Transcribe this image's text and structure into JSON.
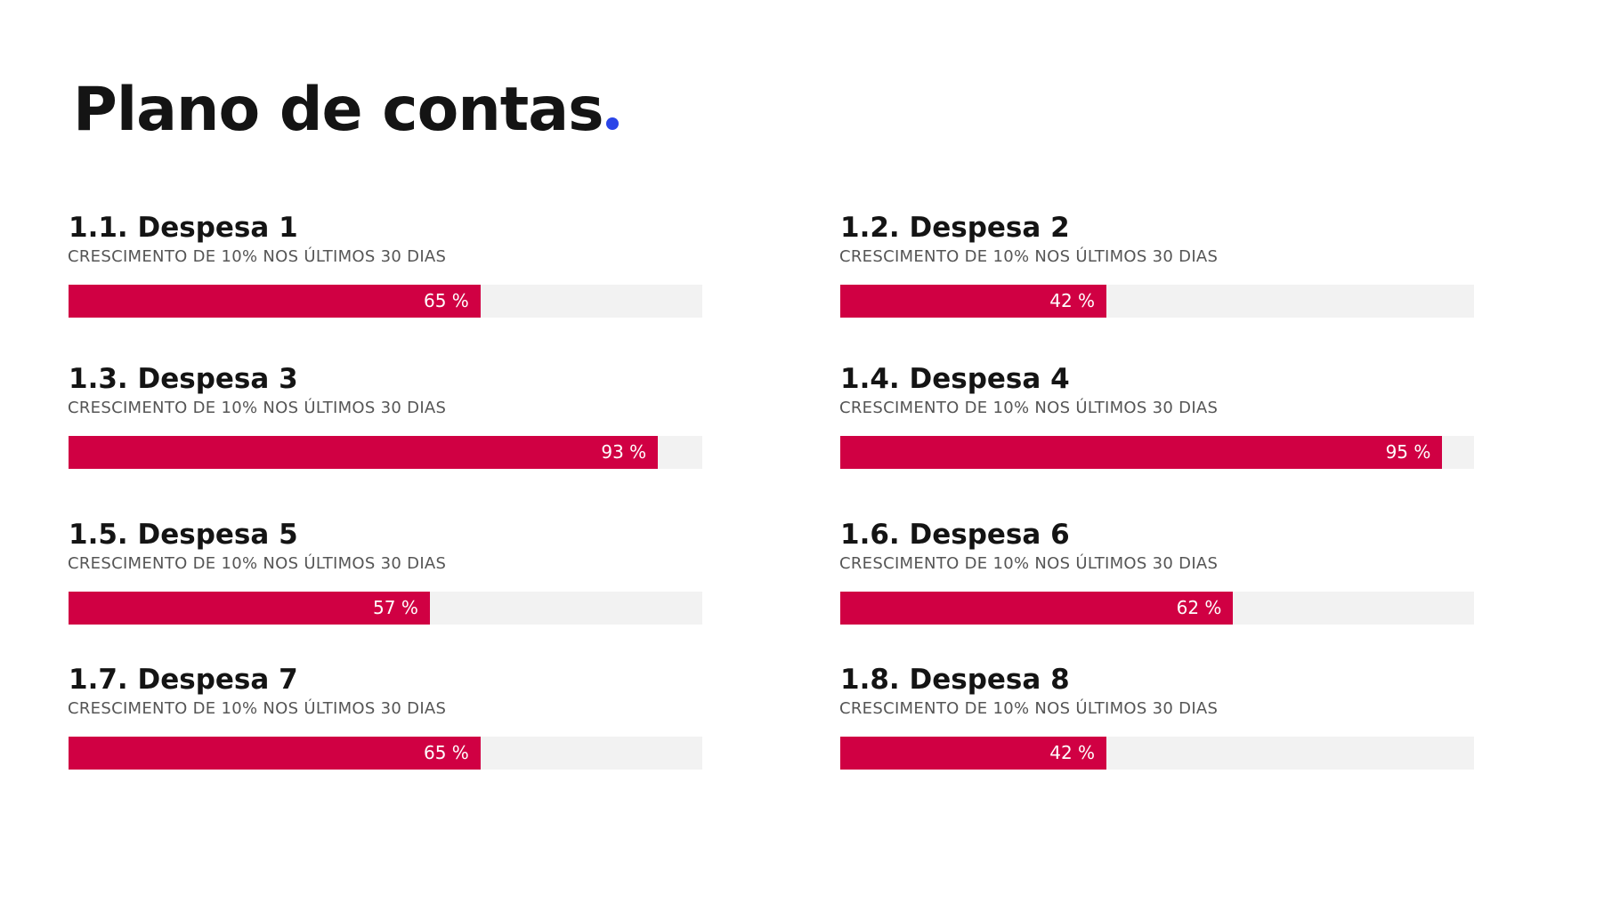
{
  "title": "Plano de contas",
  "title_dot": ".",
  "colors": {
    "accent_dot": "#2b45e8",
    "bar_fill": "#d00043",
    "bar_track": "#f2f2f2"
  },
  "chart_data": {
    "type": "bar",
    "orientation": "horizontal",
    "xlim": [
      0,
      100
    ],
    "value_unit": "%",
    "grid": false,
    "items": [
      {
        "label": "1.1. Despesa 1",
        "subtitle": "CRESCIMENTO DE 10% NOS ÚLTIMOS 30 DIAS",
        "value": 65,
        "value_label": "65 %"
      },
      {
        "label": "1.2. Despesa 2",
        "subtitle": "CRESCIMENTO DE 10% NOS ÚLTIMOS 30 DIAS",
        "value": 42,
        "value_label": "42 %"
      },
      {
        "label": "1.3. Despesa 3",
        "subtitle": "CRESCIMENTO DE 10% NOS ÚLTIMOS 30 DIAS",
        "value": 93,
        "value_label": "93 %"
      },
      {
        "label": "1.4. Despesa 4",
        "subtitle": "CRESCIMENTO DE 10% NOS ÚLTIMOS 30 DIAS",
        "value": 95,
        "value_label": "95 %"
      },
      {
        "label": "1.5. Despesa 5",
        "subtitle": "CRESCIMENTO DE 10% NOS ÚLTIMOS 30 DIAS",
        "value": 57,
        "value_label": "57 %"
      },
      {
        "label": "1.6. Despesa 6",
        "subtitle": "CRESCIMENTO DE 10% NOS ÚLTIMOS 30 DIAS",
        "value": 62,
        "value_label": "62 %"
      },
      {
        "label": "1.7. Despesa 7",
        "subtitle": "CRESCIMENTO DE 10% NOS ÚLTIMOS 30 DIAS",
        "value": 65,
        "value_label": "65 %"
      },
      {
        "label": "1.8. Despesa 8",
        "subtitle": "CRESCIMENTO DE 10% NOS ÚLTIMOS 30 DIAS",
        "value": 42,
        "value_label": "42 %"
      }
    ]
  }
}
